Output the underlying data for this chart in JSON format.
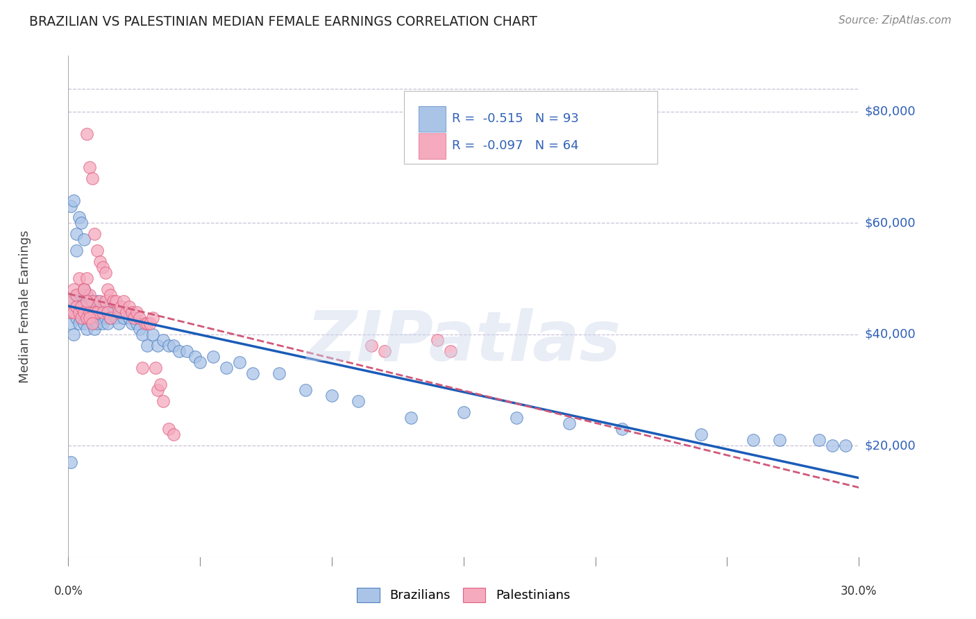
{
  "title": "BRAZILIAN VS PALESTINIAN MEDIAN FEMALE EARNINGS CORRELATION CHART",
  "source_text": "Source: ZipAtlas.com",
  "ylabel": "Median Female Earnings",
  "watermark": "ZIPatlas",
  "r_brazil": -0.515,
  "n_brazil": 93,
  "r_palest": -0.097,
  "n_palest": 64,
  "ytick_labels": [
    "$20,000",
    "$40,000",
    "$60,000",
    "$80,000"
  ],
  "ytick_values": [
    20000,
    40000,
    60000,
    80000
  ],
  "xlim": [
    0.0,
    0.3
  ],
  "ylim": [
    0,
    90000
  ],
  "brazil_fill": "#aac4e8",
  "palest_fill": "#f5aabe",
  "brazil_edge": "#5080c0",
  "palest_edge": "#e06080",
  "brazil_line": "#1a5cb8",
  "palest_line": "#d05878",
  "background": "#ffffff",
  "grid_color": "#c8c0d8",
  "title_color": "#222222",
  "tick_label_color": "#3060b8",
  "brazil_x": [
    0.001,
    0.001,
    0.002,
    0.002,
    0.002,
    0.003,
    0.003,
    0.003,
    0.004,
    0.004,
    0.004,
    0.005,
    0.005,
    0.005,
    0.006,
    0.006,
    0.006,
    0.006,
    0.007,
    0.007,
    0.007,
    0.007,
    0.008,
    0.008,
    0.008,
    0.008,
    0.009,
    0.009,
    0.009,
    0.01,
    0.01,
    0.01,
    0.011,
    0.011,
    0.011,
    0.012,
    0.012,
    0.013,
    0.013,
    0.014,
    0.014,
    0.015,
    0.015,
    0.016,
    0.017,
    0.018,
    0.019,
    0.02,
    0.021,
    0.022,
    0.023,
    0.024,
    0.025,
    0.026,
    0.027,
    0.028,
    0.03,
    0.032,
    0.034,
    0.036,
    0.038,
    0.04,
    0.042,
    0.045,
    0.048,
    0.05,
    0.055,
    0.06,
    0.065,
    0.07,
    0.08,
    0.09,
    0.1,
    0.11,
    0.13,
    0.15,
    0.17,
    0.19,
    0.21,
    0.24,
    0.26,
    0.27,
    0.285,
    0.29,
    0.295,
    0.001,
    0.002,
    0.003,
    0.001,
    0.003,
    0.004,
    0.005,
    0.006
  ],
  "brazil_y": [
    44000,
    42000,
    46000,
    44000,
    40000,
    47000,
    43000,
    45000,
    44000,
    42000,
    46000,
    45000,
    43000,
    47000,
    44000,
    46000,
    42000,
    48000,
    43000,
    45000,
    41000,
    47000,
    44000,
    43000,
    45000,
    46000,
    42000,
    44000,
    46000,
    43000,
    45000,
    41000,
    44000,
    42000,
    46000,
    43000,
    45000,
    44000,
    42000,
    45000,
    43000,
    44000,
    42000,
    43000,
    44000,
    43000,
    42000,
    44000,
    43000,
    44000,
    43000,
    42000,
    43000,
    42000,
    41000,
    40000,
    38000,
    40000,
    38000,
    39000,
    38000,
    38000,
    37000,
    37000,
    36000,
    35000,
    36000,
    34000,
    35000,
    33000,
    33000,
    30000,
    29000,
    28000,
    25000,
    26000,
    25000,
    24000,
    23000,
    22000,
    21000,
    21000,
    21000,
    20000,
    20000,
    63000,
    64000,
    58000,
    17000,
    55000,
    61000,
    60000,
    57000
  ],
  "palest_x": [
    0.001,
    0.001,
    0.002,
    0.002,
    0.003,
    0.003,
    0.004,
    0.004,
    0.005,
    0.005,
    0.006,
    0.006,
    0.007,
    0.007,
    0.007,
    0.008,
    0.008,
    0.008,
    0.009,
    0.009,
    0.01,
    0.01,
    0.011,
    0.011,
    0.012,
    0.012,
    0.013,
    0.013,
    0.014,
    0.014,
    0.015,
    0.015,
    0.016,
    0.016,
    0.017,
    0.018,
    0.019,
    0.02,
    0.021,
    0.022,
    0.023,
    0.024,
    0.025,
    0.026,
    0.027,
    0.028,
    0.029,
    0.03,
    0.031,
    0.032,
    0.033,
    0.034,
    0.035,
    0.036,
    0.038,
    0.04,
    0.006,
    0.007,
    0.008,
    0.009,
    0.14,
    0.145,
    0.115,
    0.12
  ],
  "palest_y": [
    44000,
    46000,
    48000,
    44000,
    47000,
    45000,
    50000,
    44000,
    45000,
    43000,
    48000,
    44000,
    76000,
    50000,
    43000,
    70000,
    44000,
    47000,
    68000,
    46000,
    58000,
    44000,
    55000,
    44000,
    53000,
    46000,
    52000,
    44000,
    51000,
    46000,
    48000,
    44000,
    47000,
    43000,
    46000,
    46000,
    44000,
    45000,
    46000,
    44000,
    45000,
    44000,
    43000,
    44000,
    43000,
    34000,
    42000,
    42000,
    42000,
    43000,
    34000,
    30000,
    31000,
    28000,
    23000,
    22000,
    48000,
    46000,
    43000,
    42000,
    39000,
    37000,
    38000,
    37000
  ]
}
